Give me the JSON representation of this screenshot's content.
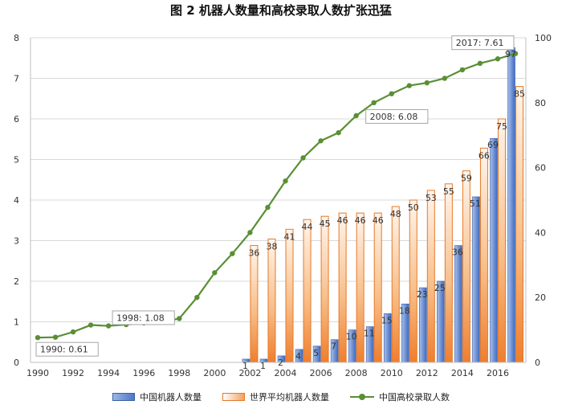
{
  "title": "图 2  机器人数量和高校录取人数扩张迅猛",
  "colors": {
    "china_robots": "#4d78c8",
    "world_robots": "#f08a3c",
    "enrollment": "#5a8f34"
  },
  "chart_data": {
    "type": "bar",
    "title": "图 2  机器人数量和高校录取人数扩张迅猛",
    "x": [
      1990,
      1991,
      1992,
      1993,
      1994,
      1995,
      1996,
      1997,
      1998,
      1999,
      2000,
      2001,
      2002,
      2003,
      2004,
      2005,
      2006,
      2007,
      2008,
      2009,
      2010,
      2011,
      2012,
      2013,
      2014,
      2015,
      2016,
      2017
    ],
    "x_ticks": [
      1990,
      1992,
      1994,
      1996,
      1998,
      2000,
      2002,
      2004,
      2006,
      2008,
      2010,
      2012,
      2014,
      2016
    ],
    "y_left": {
      "lim": [
        0,
        8
      ],
      "ticks": [
        0,
        1,
        2,
        3,
        4,
        5,
        6,
        7,
        8
      ]
    },
    "y_right": {
      "lim": [
        0,
        100
      ],
      "ticks": [
        0,
        20,
        40,
        60,
        80,
        100
      ]
    },
    "grid": true,
    "legend_position": "bottom",
    "series": [
      {
        "name": "中国机器人数量",
        "type": "bar",
        "axis": "right",
        "x": [
          2002,
          2003,
          2004,
          2005,
          2006,
          2007,
          2008,
          2009,
          2010,
          2011,
          2012,
          2013,
          2014,
          2015,
          2016,
          2017
        ],
        "values": [
          1,
          1,
          2,
          4,
          5,
          7,
          10,
          11,
          15,
          18,
          23,
          25,
          36,
          51,
          69,
          97
        ],
        "labels": [
          "1",
          "1",
          "2",
          "4",
          "5",
          "7",
          "10",
          "11",
          "15",
          "18",
          "23",
          "25",
          "36",
          "51",
          "69",
          "97"
        ]
      },
      {
        "name": "世界平均机器人数量",
        "type": "bar",
        "axis": "right",
        "x": [
          2002,
          2003,
          2004,
          2005,
          2006,
          2007,
          2008,
          2009,
          2010,
          2011,
          2012,
          2013,
          2014,
          2015,
          2016,
          2017
        ],
        "values": [
          36,
          38,
          41,
          44,
          45,
          46,
          46,
          46,
          48,
          50,
          53,
          55,
          59,
          66,
          75,
          85
        ],
        "labels": [
          "36",
          "38",
          "41",
          "44",
          "45",
          "46",
          "46",
          "46",
          "48",
          "50",
          "53",
          "55",
          "59",
          "66",
          "75",
          "85"
        ]
      },
      {
        "name": "中国高校录取人数",
        "type": "line",
        "axis": "left",
        "x": [
          1990,
          1991,
          1992,
          1993,
          1994,
          1995,
          1996,
          1997,
          1998,
          1999,
          2000,
          2001,
          2002,
          2003,
          2004,
          2005,
          2006,
          2007,
          2008,
          2009,
          2010,
          2011,
          2012,
          2013,
          2014,
          2015,
          2016,
          2017
        ],
        "values": [
          0.61,
          0.62,
          0.75,
          0.92,
          0.9,
          0.93,
          0.97,
          1.0,
          1.08,
          1.6,
          2.21,
          2.68,
          3.2,
          3.82,
          4.47,
          5.04,
          5.46,
          5.66,
          6.08,
          6.4,
          6.62,
          6.82,
          6.89,
          7.0,
          7.21,
          7.37,
          7.48,
          7.61
        ]
      }
    ],
    "annotations": [
      {
        "text": "1990: 0.61",
        "x": 1990,
        "y": 0.61
      },
      {
        "text": "1998: 1.08",
        "x": 1998,
        "y": 1.08
      },
      {
        "text": "2008: 6.08",
        "x": 2008,
        "y": 6.08
      },
      {
        "text": "2017: 7.61",
        "x": 2017,
        "y": 7.61
      }
    ]
  }
}
